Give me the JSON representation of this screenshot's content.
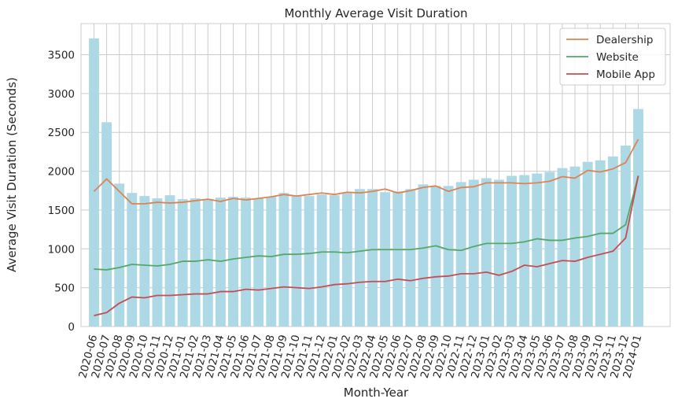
{
  "chart_data": {
    "type": "bar+line",
    "title": "Monthly Average Visit Duration",
    "xlabel": "Month-Year",
    "ylabel": "Average Visit Duration (Seconds)",
    "ylim": [
      0,
      3900
    ],
    "yticks": [
      0,
      500,
      1000,
      1500,
      2000,
      2500,
      3000,
      3500
    ],
    "grid": true,
    "legend_position": "top-right",
    "categories": [
      "2020-06",
      "2020-07",
      "2020-08",
      "2020-09",
      "2020-10",
      "2020-11",
      "2020-12",
      "2021-01",
      "2021-02",
      "2021-03",
      "2021-04",
      "2021-05",
      "2021-06",
      "2021-07",
      "2021-08",
      "2021-09",
      "2021-10",
      "2021-11",
      "2021-12",
      "2022-01",
      "2022-02",
      "2022-03",
      "2022-04",
      "2022-05",
      "2022-06",
      "2022-07",
      "2022-08",
      "2022-09",
      "2022-10",
      "2022-11",
      "2022-12",
      "2023-01",
      "2023-02",
      "2023-03",
      "2023-04",
      "2023-05",
      "2023-06",
      "2023-07",
      "2023-08",
      "2023-09",
      "2023-10",
      "2023-11",
      "2023-12",
      "2024-01"
    ],
    "bars": {
      "color": "#add8e6",
      "values": [
        3710,
        2630,
        1840,
        1720,
        1680,
        1650,
        1690,
        1640,
        1650,
        1640,
        1660,
        1670,
        1660,
        1650,
        1670,
        1720,
        1690,
        1680,
        1700,
        1690,
        1720,
        1770,
        1770,
        1730,
        1740,
        1770,
        1830,
        1810,
        1810,
        1860,
        1890,
        1910,
        1890,
        1940,
        1950,
        1970,
        1990,
        2040,
        2060,
        2120,
        2140,
        2190,
        2330,
        2800
      ]
    },
    "series": [
      {
        "name": "Dealership",
        "color": "#dd8452",
        "values": [
          1740,
          1900,
          1740,
          1580,
          1580,
          1600,
          1590,
          1600,
          1620,
          1640,
          1610,
          1650,
          1630,
          1650,
          1670,
          1700,
          1680,
          1700,
          1720,
          1700,
          1730,
          1720,
          1740,
          1770,
          1720,
          1750,
          1790,
          1810,
          1740,
          1790,
          1800,
          1850,
          1850,
          1850,
          1840,
          1850,
          1870,
          1930,
          1910,
          2010,
          1990,
          2030,
          2110,
          2410
        ]
      },
      {
        "name": "Website",
        "color": "#55a868",
        "values": [
          740,
          730,
          760,
          800,
          790,
          780,
          800,
          840,
          840,
          860,
          840,
          870,
          890,
          910,
          900,
          930,
          930,
          940,
          960,
          960,
          950,
          970,
          990,
          990,
          990,
          990,
          1010,
          1040,
          990,
          980,
          1030,
          1070,
          1070,
          1070,
          1090,
          1130,
          1110,
          1110,
          1140,
          1160,
          1200,
          1200,
          1310,
          1940
        ]
      },
      {
        "name": "Mobile App",
        "color": "#c44e52",
        "values": [
          140,
          180,
          300,
          380,
          370,
          400,
          400,
          410,
          420,
          420,
          450,
          450,
          480,
          470,
          490,
          510,
          500,
          490,
          510,
          540,
          550,
          570,
          580,
          580,
          610,
          590,
          620,
          640,
          650,
          680,
          680,
          700,
          660,
          710,
          790,
          770,
          810,
          850,
          840,
          890,
          930,
          970,
          1140,
          1940
        ]
      }
    ]
  }
}
